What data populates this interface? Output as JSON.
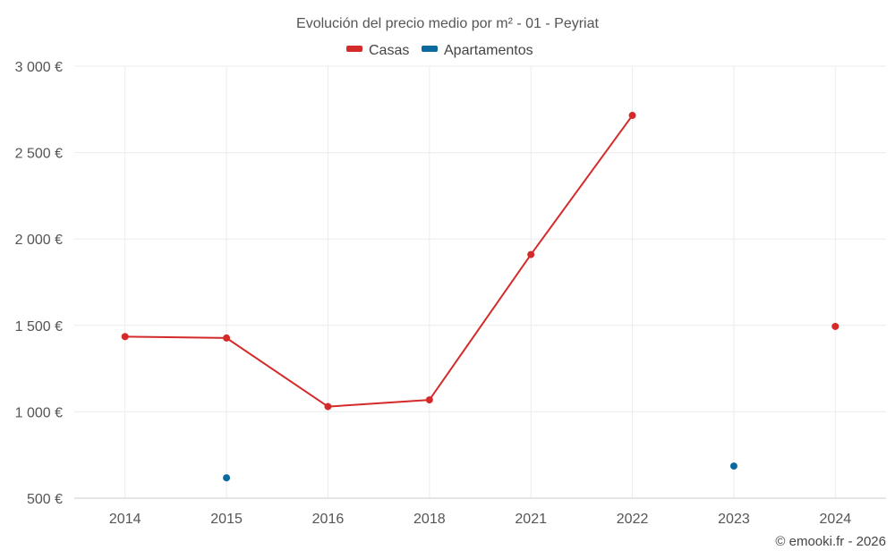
{
  "chart_data": {
    "type": "line",
    "title": "Evolución del precio medio por m² - 01 - Peyriat",
    "categories": [
      "2014",
      "2015",
      "2016",
      "2018",
      "2021",
      "2022",
      "2023",
      "2024"
    ],
    "ylim": [
      500,
      3000
    ],
    "yticks": [
      500,
      1000,
      1500,
      2000,
      2500,
      3000
    ],
    "ytick_labels": [
      "500 €",
      "1 000 €",
      "1 500 €",
      "2 000 €",
      "2 500 €",
      "3 000 €"
    ],
    "grid": true,
    "legend_position": "top-center",
    "series": [
      {
        "name": "Casas",
        "color": "#d42a2a",
        "values": [
          1435,
          1427,
          1030,
          1069,
          1910,
          2715,
          null,
          1494
        ]
      },
      {
        "name": "Apartamentos",
        "color": "#0a6a9e",
        "values": [
          null,
          618,
          null,
          null,
          null,
          null,
          686,
          null
        ]
      }
    ],
    "credit": "© emooki.fr - 2026"
  }
}
